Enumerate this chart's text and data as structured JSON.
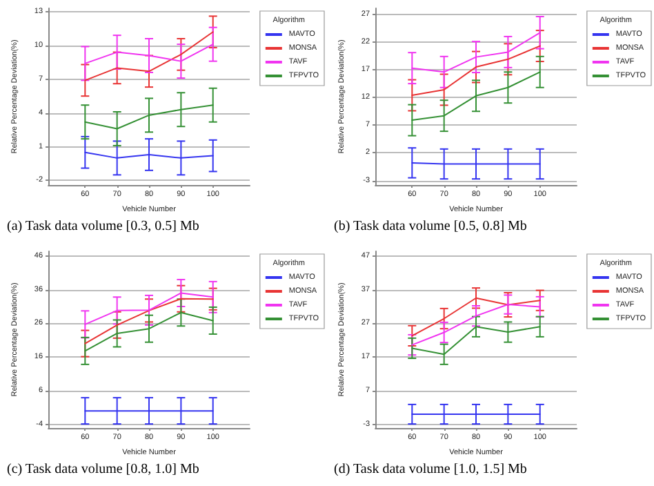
{
  "chart_data": [
    {
      "type": "line",
      "title": "(a) Task data volume [0.3, 0.5] Mb",
      "xlabel": "Vehicle Number",
      "ylabel": "Relative Percentage Deviation(%)",
      "legend_title": "Algorithm",
      "x": [
        60,
        70,
        80,
        90,
        100
      ],
      "xlim": [
        48.5,
        111.5
      ],
      "xticks": [
        60,
        70,
        80,
        90,
        100
      ],
      "ylim": [
        -2.4,
        13.3
      ],
      "yticks": [
        -2,
        1,
        4,
        7,
        10,
        13
      ],
      "grid": "y",
      "legend": "right",
      "marker": "none",
      "line_style": "solid",
      "series": [
        {
          "name": "MAVTO",
          "color": "#3434f0",
          "values": [
            0.5,
            0.0,
            0.3,
            0.0,
            0.2
          ],
          "errors": [
            1.4,
            1.5,
            1.4,
            1.5,
            1.4
          ]
        },
        {
          "name": "MONSA",
          "color": "#e83434",
          "values": [
            6.9,
            8.0,
            7.7,
            9.2,
            11.2
          ],
          "errors": [
            1.4,
            1.4,
            1.4,
            1.4,
            1.4
          ]
        },
        {
          "name": "TAVF",
          "color": "#f034f0",
          "values": [
            8.4,
            9.4,
            9.1,
            8.6,
            10.1
          ],
          "errors": [
            1.5,
            1.5,
            1.5,
            1.5,
            1.5
          ]
        },
        {
          "name": "TFPVTO",
          "color": "#349034",
          "values": [
            3.2,
            2.6,
            3.8,
            4.3,
            4.7
          ],
          "errors": [
            1.5,
            1.5,
            1.5,
            1.5,
            1.5
          ]
        }
      ]
    },
    {
      "type": "line",
      "title": "(b) Task data volume [0.5, 0.8] Mb",
      "xlabel": "Vehicle Number",
      "ylabel": "Relative Percentage Deviation(%)",
      "legend_title": "Algorithm",
      "x": [
        60,
        70,
        80,
        90,
        100
      ],
      "xlim": [
        48.5,
        111.5
      ],
      "xticks": [
        60,
        70,
        80,
        90,
        100
      ],
      "ylim": [
        -3.8,
        28.1
      ],
      "yticks": [
        -3,
        2,
        7,
        12,
        17,
        22,
        27
      ],
      "grid": "y",
      "legend": "right",
      "marker": "none",
      "line_style": "solid",
      "series": [
        {
          "name": "MAVTO",
          "color": "#3434f0",
          "values": [
            0.2,
            0.0,
            0.0,
            0.0,
            0.0
          ],
          "errors": [
            2.7,
            2.7,
            2.7,
            2.7,
            2.7
          ]
        },
        {
          "name": "MONSA",
          "color": "#e83434",
          "values": [
            12.4,
            13.4,
            17.5,
            18.9,
            21.3
          ],
          "errors": [
            2.8,
            2.8,
            2.8,
            2.8,
            2.8
          ]
        },
        {
          "name": "TAVF",
          "color": "#f034f0",
          "values": [
            17.3,
            16.6,
            19.3,
            20.2,
            23.7
          ],
          "errors": [
            2.8,
            2.8,
            2.8,
            2.8,
            2.9
          ]
        },
        {
          "name": "TFPVTO",
          "color": "#349034",
          "values": [
            7.9,
            8.7,
            12.3,
            13.8,
            16.6
          ],
          "errors": [
            2.8,
            2.8,
            2.8,
            2.8,
            2.8
          ]
        }
      ]
    },
    {
      "type": "line",
      "title": "(c) Task data volume [0.8, 1.0] Mb",
      "xlabel": "Vehicle Number",
      "ylabel": "Relative Percentage Deviation(%)",
      "legend_title": "Algorithm",
      "x": [
        60,
        70,
        80,
        90,
        100
      ],
      "xlim": [
        48.5,
        111.5
      ],
      "xticks": [
        60,
        70,
        80,
        90,
        100
      ],
      "ylim": [
        -5.1,
        47.4
      ],
      "yticks": [
        -4,
        6,
        16,
        26,
        36,
        46
      ],
      "grid": "y",
      "legend": "right",
      "marker": "none",
      "line_style": "solid",
      "series": [
        {
          "name": "MAVTO",
          "color": "#3434f0",
          "values": [
            0.0,
            0.0,
            0.0,
            0.0,
            0.0
          ],
          "errors": [
            3.9,
            3.9,
            3.9,
            3.9,
            3.9
          ]
        },
        {
          "name": "MONSA",
          "color": "#e83434",
          "values": [
            20.0,
            25.5,
            29.8,
            33.3,
            33.2
          ],
          "errors": [
            3.9,
            3.9,
            3.4,
            3.9,
            3.2
          ]
        },
        {
          "name": "TAVF",
          "color": "#f034f0",
          "values": [
            25.7,
            29.8,
            29.9,
            35.0,
            33.8
          ],
          "errors": [
            4,
            4,
            4.4,
            4,
            4.6
          ]
        },
        {
          "name": "TFPVTO",
          "color": "#349034",
          "values": [
            17.8,
            23.0,
            24.4,
            29.2,
            26.8
          ],
          "errors": [
            4,
            4,
            4,
            4,
            4
          ]
        }
      ]
    },
    {
      "type": "line",
      "title": "(d) Task data volume [1.0, 1.5] Mb",
      "xlabel": "Vehicle Number",
      "ylabel": "Relative Percentage Deviation(%)",
      "legend_title": "Algorithm",
      "x": [
        60,
        70,
        80,
        90,
        100
      ],
      "xlim": [
        48.5,
        111.5
      ],
      "xticks": [
        60,
        70,
        80,
        90,
        100
      ],
      "ylim": [
        -4.1,
        48.4
      ],
      "yticks": [
        -3,
        7,
        17,
        27,
        37,
        47
      ],
      "grid": "y",
      "legend": "right",
      "marker": "none",
      "line_style": "solid",
      "series": [
        {
          "name": "MAVTO",
          "color": "#3434f0",
          "values": [
            0.0,
            0.0,
            0.0,
            0.0,
            0.0
          ],
          "errors": [
            2.9,
            2.9,
            2.9,
            2.9,
            2.9
          ]
        },
        {
          "name": "MONSA",
          "color": "#e83434",
          "values": [
            23.3,
            28.4,
            34.5,
            32.5,
            33.8
          ],
          "errors": [
            3,
            3,
            3,
            3.6,
            3
          ]
        },
        {
          "name": "TAVF",
          "color": "#f034f0",
          "values": [
            20.6,
            24.3,
            29.2,
            32.6,
            31.9
          ],
          "errors": [
            3,
            3,
            3,
            2.8,
            3
          ]
        },
        {
          "name": "TFPVTO",
          "color": "#349034",
          "values": [
            19.6,
            17.8,
            26.0,
            24.4,
            26.0
          ],
          "errors": [
            3,
            3,
            3,
            3,
            3
          ]
        }
      ]
    }
  ]
}
